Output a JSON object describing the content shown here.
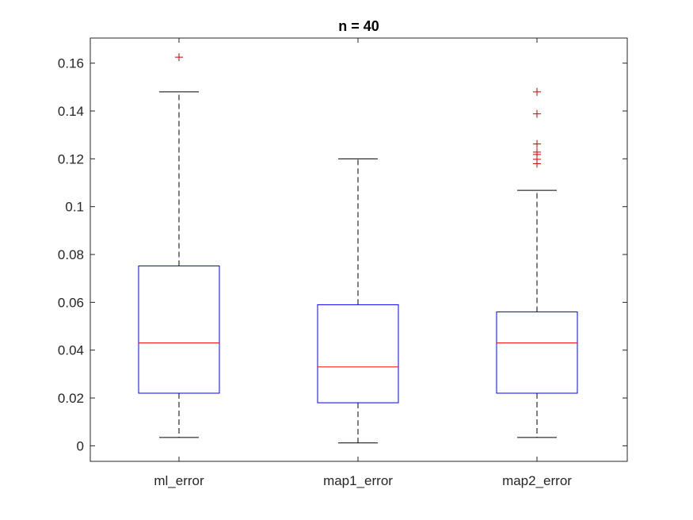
{
  "chart_data": {
    "type": "box",
    "title": "n = 40",
    "xlabel": "",
    "ylabel": "",
    "ylim": [
      -0.0065,
      0.1705
    ],
    "yticks": [
      0,
      0.02,
      0.04,
      0.06,
      0.08,
      0.1,
      0.12,
      0.14,
      0.16
    ],
    "ytick_labels": [
      "0",
      "0.02",
      "0.04",
      "0.06",
      "0.08",
      "0.1",
      "0.12",
      "0.14",
      "0.16"
    ],
    "categories": [
      "ml_error",
      "map1_error",
      "map2_error"
    ],
    "boxes": [
      {
        "category": "ml_error",
        "whisker_low": 0.0035,
        "q1": 0.022,
        "median": 0.043,
        "q3": 0.0752,
        "whisker_high": 0.148,
        "outliers": [
          0.1625
        ]
      },
      {
        "category": "map1_error",
        "whisker_low": 0.0012,
        "q1": 0.018,
        "median": 0.033,
        "q3": 0.059,
        "whisker_high": 0.12,
        "outliers": []
      },
      {
        "category": "map2_error",
        "whisker_low": 0.0035,
        "q1": 0.022,
        "median": 0.043,
        "q3": 0.056,
        "whisker_high": 0.1068,
        "outliers": [
          0.118,
          0.1198,
          0.1218,
          0.1228,
          0.1262,
          0.1388,
          0.148
        ]
      }
    ],
    "grid": false,
    "legend": "none",
    "colors": {
      "box": "#0000ff",
      "median": "#ff0000",
      "outlier": "#cc0000",
      "whisker": "#000000",
      "axes": "#262626"
    }
  }
}
